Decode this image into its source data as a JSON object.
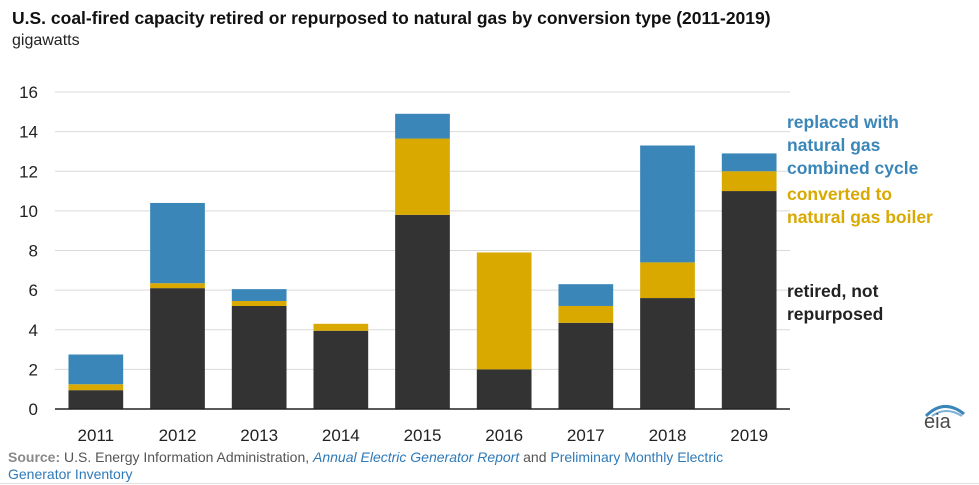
{
  "title": "U.S. coal-fired capacity retired or repurposed to natural gas by conversion type (2011-2019)",
  "subtitle": "gigawatts",
  "legend": {
    "gas_cc": [
      "replaced with",
      "natural gas",
      "combined cycle"
    ],
    "gas_boiler": [
      "converted to",
      "natural gas boiler"
    ],
    "retired": [
      "retired, not",
      "repurposed"
    ]
  },
  "source": {
    "label": "Source:",
    "org": " U.S. Energy Information Administration, ",
    "report1": "Annual Electric Generator Report",
    "and": " and ",
    "report2_line1": "Preliminary Monthly Electric",
    "report2_line2": "Generator Inventory"
  },
  "logo_text": "eia",
  "colors": {
    "retired": "#333333",
    "gas_boiler": "#d9a900",
    "gas_cc": "#3a86b8",
    "axis": "#222222",
    "grid": "#d9d9d9"
  },
  "chart_data": {
    "type": "bar",
    "stacked": true,
    "categories": [
      "2011",
      "2012",
      "2013",
      "2014",
      "2015",
      "2016",
      "2017",
      "2018",
      "2019"
    ],
    "series": [
      {
        "name": "retired, not repurposed",
        "values": [
          0.95,
          6.1,
          5.2,
          3.95,
          9.8,
          2.0,
          4.35,
          5.6,
          11.0
        ]
      },
      {
        "name": "converted to natural gas boiler",
        "values": [
          0.3,
          0.25,
          0.25,
          0.35,
          3.85,
          5.9,
          0.85,
          1.8,
          1.0
        ]
      },
      {
        "name": "replaced with natural gas combined cycle",
        "values": [
          1.5,
          4.05,
          0.6,
          0.0,
          1.25,
          0.0,
          1.1,
          5.9,
          0.9
        ]
      }
    ],
    "ylim": [
      0,
      16
    ],
    "yticks": [
      0,
      2,
      4,
      6,
      8,
      10,
      12,
      14,
      16
    ],
    "grid": true,
    "legend_position": "right"
  }
}
